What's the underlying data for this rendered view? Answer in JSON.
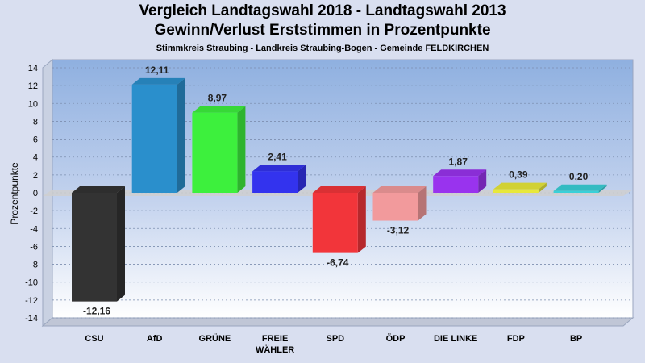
{
  "header": {
    "title_line1": "Vergleich Landtagswahl 2018 - Landtagswahl 2013",
    "title_line2": "Gewinn/Verlust Erststimmen in Prozentpunkte",
    "subtitle": "Stimmkreis Straubing - Landkreis Straubing-Bogen - Gemeinde FELDKIRCHEN"
  },
  "chart_data": {
    "type": "bar",
    "title": "Vergleich Landtagswahl 2018 - Landtagswahl 2013 / Gewinn/Verlust Erststimmen in Prozentpunkte",
    "subtitle": "Stimmkreis Straubing - Landkreis Straubing-Bogen - Gemeinde FELDKIRCHEN",
    "ylabel": "Prozentpunkte",
    "xlabel": "",
    "ylim": [
      -14,
      14
    ],
    "yticks": [
      14,
      12,
      10,
      8,
      6,
      4,
      2,
      0,
      -2,
      -4,
      -6,
      -8,
      -10,
      -12,
      -14
    ],
    "grid": true,
    "categories": [
      [
        "CSU"
      ],
      [
        "AfD"
      ],
      [
        "GRÜNE"
      ],
      [
        "FREIE",
        "WÄHLER"
      ],
      [
        "SPD"
      ],
      [
        "ÖDP"
      ],
      [
        "DIE LINKE"
      ],
      [
        "FDP"
      ],
      [
        "BP"
      ]
    ],
    "values": [
      -12.16,
      12.11,
      8.97,
      2.41,
      -6.74,
      -3.12,
      1.87,
      0.39,
      0.2
    ],
    "value_labels": [
      "-12,16",
      "12,11",
      "8,97",
      "2,41",
      "-6,74",
      "-3,12",
      "1,87",
      "0,39",
      "0,20"
    ],
    "colors": [
      "#333333",
      "#2a8fcc",
      "#3df03d",
      "#3333ee",
      "#f2353a",
      "#f29a9c",
      "#9933ee",
      "#e8e83a",
      "#3ad0d8"
    ]
  }
}
